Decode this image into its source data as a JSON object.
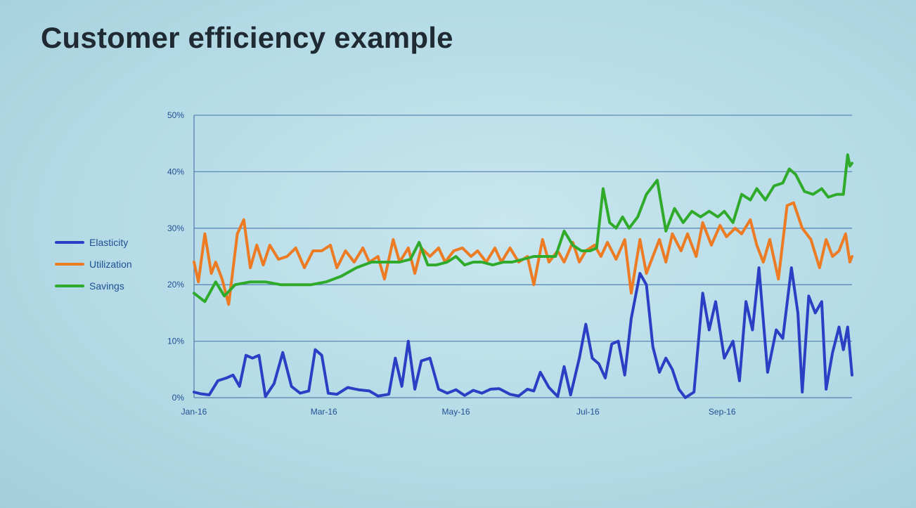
{
  "slide": {
    "title": "Customer efficiency example"
  },
  "colors": {
    "Elasticity": "#2b3fc4",
    "Utilization": "#ec7b23",
    "Savings": "#2faa2a",
    "gridline": "#3d6fa6",
    "axis": "#5b7fb0"
  },
  "chart_data": {
    "type": "line",
    "title": "",
    "xlabel": "",
    "ylabel": "",
    "ylim": [
      0,
      50
    ],
    "y_ticks": [
      "0%",
      "10%",
      "20%",
      "30%",
      "40%",
      "50%"
    ],
    "x_tick_labels": [
      "Jan-16",
      "Mar-16",
      "May-16",
      "Jul-16",
      "Sep-16"
    ],
    "x_range": [
      "2016-01-01",
      "2016-10-31"
    ],
    "grid": true,
    "legend_position": "left",
    "series": [
      {
        "name": "Elasticity",
        "points": [
          [
            "2016-01-01",
            1
          ],
          [
            "2016-01-04",
            0.7
          ],
          [
            "2016-01-08",
            0.5
          ],
          [
            "2016-01-12",
            3
          ],
          [
            "2016-01-16",
            3.5
          ],
          [
            "2016-01-19",
            4
          ],
          [
            "2016-01-22",
            2
          ],
          [
            "2016-01-25",
            7.5
          ],
          [
            "2016-01-28",
            7
          ],
          [
            "2016-01-31",
            7.5
          ],
          [
            "2016-02-03",
            0.2
          ],
          [
            "2016-02-07",
            2.5
          ],
          [
            "2016-02-11",
            8
          ],
          [
            "2016-02-15",
            2
          ],
          [
            "2016-02-19",
            0.8
          ],
          [
            "2016-02-23",
            1.2
          ],
          [
            "2016-02-26",
            8.5
          ],
          [
            "2016-02-29",
            7.5
          ],
          [
            "2016-03-03",
            0.8
          ],
          [
            "2016-03-07",
            0.6
          ],
          [
            "2016-03-12",
            1.8
          ],
          [
            "2016-03-17",
            1.4
          ],
          [
            "2016-03-22",
            1.2
          ],
          [
            "2016-03-26",
            0.3
          ],
          [
            "2016-03-31",
            0.6
          ],
          [
            "2016-04-03",
            7
          ],
          [
            "2016-04-06",
            2
          ],
          [
            "2016-04-09",
            10
          ],
          [
            "2016-04-12",
            1.5
          ],
          [
            "2016-04-15",
            6.5
          ],
          [
            "2016-04-19",
            7
          ],
          [
            "2016-04-23",
            1.5
          ],
          [
            "2016-04-27",
            0.8
          ],
          [
            "2016-05-01",
            1.4
          ],
          [
            "2016-05-05",
            0.4
          ],
          [
            "2016-05-09",
            1.3
          ],
          [
            "2016-05-13",
            0.8
          ],
          [
            "2016-05-17",
            1.5
          ],
          [
            "2016-05-21",
            1.6
          ],
          [
            "2016-05-26",
            0.6
          ],
          [
            "2016-05-30",
            0.3
          ],
          [
            "2016-06-03",
            1.5
          ],
          [
            "2016-06-06",
            1.2
          ],
          [
            "2016-06-09",
            4.5
          ],
          [
            "2016-06-13",
            1.8
          ],
          [
            "2016-06-17",
            0.2
          ],
          [
            "2016-06-20",
            5.5
          ],
          [
            "2016-06-23",
            0.5
          ],
          [
            "2016-06-27",
            7
          ],
          [
            "2016-06-30",
            13
          ],
          [
            "2016-07-03",
            7
          ],
          [
            "2016-07-06",
            6
          ],
          [
            "2016-07-09",
            3.5
          ],
          [
            "2016-07-12",
            9.5
          ],
          [
            "2016-07-15",
            10
          ],
          [
            "2016-07-18",
            4
          ],
          [
            "2016-07-21",
            14
          ],
          [
            "2016-07-25",
            22
          ],
          [
            "2016-07-28",
            20
          ],
          [
            "2016-07-31",
            9
          ],
          [
            "2016-08-03",
            4.5
          ],
          [
            "2016-08-06",
            7
          ],
          [
            "2016-08-09",
            5
          ],
          [
            "2016-08-12",
            1.5
          ],
          [
            "2016-08-15",
            0
          ],
          [
            "2016-08-19",
            1
          ],
          [
            "2016-08-23",
            18.5
          ],
          [
            "2016-08-26",
            12
          ],
          [
            "2016-08-29",
            17
          ],
          [
            "2016-09-02",
            7
          ],
          [
            "2016-09-06",
            10
          ],
          [
            "2016-09-09",
            3
          ],
          [
            "2016-09-12",
            17
          ],
          [
            "2016-09-15",
            12
          ],
          [
            "2016-09-18",
            23
          ],
          [
            "2016-09-22",
            4.5
          ],
          [
            "2016-09-26",
            12
          ],
          [
            "2016-09-29",
            10.5
          ],
          [
            "2016-10-03",
            23
          ],
          [
            "2016-10-06",
            15
          ],
          [
            "2016-10-08",
            1
          ],
          [
            "2016-10-11",
            18
          ],
          [
            "2016-10-14",
            15
          ],
          [
            "2016-10-17",
            17
          ],
          [
            "2016-10-19",
            1.5
          ],
          [
            "2016-10-22",
            8
          ],
          [
            "2016-10-25",
            12.5
          ],
          [
            "2016-10-27",
            8.5
          ],
          [
            "2016-10-29",
            12.5
          ],
          [
            "2016-10-31",
            4
          ]
        ]
      },
      {
        "name": "Utilization",
        "points": [
          [
            "2016-01-01",
            24
          ],
          [
            "2016-01-03",
            20.5
          ],
          [
            "2016-01-06",
            29
          ],
          [
            "2016-01-09",
            22
          ],
          [
            "2016-01-11",
            24
          ],
          [
            "2016-01-14",
            21
          ],
          [
            "2016-01-17",
            16.5
          ],
          [
            "2016-01-21",
            29
          ],
          [
            "2016-01-24",
            31.5
          ],
          [
            "2016-01-27",
            23
          ],
          [
            "2016-01-30",
            27
          ],
          [
            "2016-02-02",
            23.5
          ],
          [
            "2016-02-05",
            27
          ],
          [
            "2016-02-09",
            24.5
          ],
          [
            "2016-02-13",
            25
          ],
          [
            "2016-02-17",
            26.5
          ],
          [
            "2016-02-21",
            23
          ],
          [
            "2016-02-25",
            26
          ],
          [
            "2016-02-29",
            26
          ],
          [
            "2016-03-04",
            27
          ],
          [
            "2016-03-07",
            23
          ],
          [
            "2016-03-11",
            26
          ],
          [
            "2016-03-15",
            24
          ],
          [
            "2016-03-19",
            26.5
          ],
          [
            "2016-03-22",
            24
          ],
          [
            "2016-03-26",
            25
          ],
          [
            "2016-03-29",
            21
          ],
          [
            "2016-04-02",
            28
          ],
          [
            "2016-04-05",
            24
          ],
          [
            "2016-04-09",
            26.5
          ],
          [
            "2016-04-12",
            22
          ],
          [
            "2016-04-15",
            26.5
          ],
          [
            "2016-04-19",
            25
          ],
          [
            "2016-04-23",
            26.5
          ],
          [
            "2016-04-26",
            24
          ],
          [
            "2016-04-30",
            26
          ],
          [
            "2016-05-04",
            26.5
          ],
          [
            "2016-05-08",
            25
          ],
          [
            "2016-05-11",
            26
          ],
          [
            "2016-05-15",
            24
          ],
          [
            "2016-05-19",
            26.5
          ],
          [
            "2016-05-22",
            24
          ],
          [
            "2016-05-26",
            26.5
          ],
          [
            "2016-05-30",
            24
          ],
          [
            "2016-06-03",
            25
          ],
          [
            "2016-06-06",
            20
          ],
          [
            "2016-06-10",
            28
          ],
          [
            "2016-06-13",
            24
          ],
          [
            "2016-06-17",
            26
          ],
          [
            "2016-06-20",
            24
          ],
          [
            "2016-06-24",
            27.5
          ],
          [
            "2016-06-27",
            24
          ],
          [
            "2016-06-30",
            26
          ],
          [
            "2016-07-04",
            27
          ],
          [
            "2016-07-07",
            25
          ],
          [
            "2016-07-10",
            27.5
          ],
          [
            "2016-07-14",
            24.5
          ],
          [
            "2016-07-18",
            28
          ],
          [
            "2016-07-21",
            18.5
          ],
          [
            "2016-07-25",
            28
          ],
          [
            "2016-07-28",
            22
          ],
          [
            "2016-07-31",
            25
          ],
          [
            "2016-08-03",
            28
          ],
          [
            "2016-08-06",
            24
          ],
          [
            "2016-08-09",
            29
          ],
          [
            "2016-08-13",
            26
          ],
          [
            "2016-08-16",
            29
          ],
          [
            "2016-08-20",
            25
          ],
          [
            "2016-08-23",
            31
          ],
          [
            "2016-08-27",
            27
          ],
          [
            "2016-08-31",
            30.5
          ],
          [
            "2016-09-03",
            28.5
          ],
          [
            "2016-09-07",
            30
          ],
          [
            "2016-09-10",
            29
          ],
          [
            "2016-09-14",
            31.5
          ],
          [
            "2016-09-17",
            27
          ],
          [
            "2016-09-20",
            24
          ],
          [
            "2016-09-23",
            28
          ],
          [
            "2016-09-27",
            21
          ],
          [
            "2016-10-01",
            34
          ],
          [
            "2016-10-04",
            34.5
          ],
          [
            "2016-10-08",
            30
          ],
          [
            "2016-10-12",
            28
          ],
          [
            "2016-10-16",
            23
          ],
          [
            "2016-10-19",
            28
          ],
          [
            "2016-10-22",
            25
          ],
          [
            "2016-10-25",
            26
          ],
          [
            "2016-10-28",
            29
          ],
          [
            "2016-10-30",
            24
          ],
          [
            "2016-10-31",
            25
          ]
        ]
      },
      {
        "name": "Savings",
        "points": [
          [
            "2016-01-01",
            18.5
          ],
          [
            "2016-01-06",
            17
          ],
          [
            "2016-01-11",
            20.5
          ],
          [
            "2016-01-15",
            18
          ],
          [
            "2016-01-20",
            20
          ],
          [
            "2016-01-27",
            20.5
          ],
          [
            "2016-02-03",
            20.5
          ],
          [
            "2016-02-10",
            20
          ],
          [
            "2016-02-17",
            20
          ],
          [
            "2016-02-24",
            20
          ],
          [
            "2016-03-02",
            20.5
          ],
          [
            "2016-03-09",
            21.5
          ],
          [
            "2016-03-16",
            23
          ],
          [
            "2016-03-23",
            24
          ],
          [
            "2016-03-30",
            24
          ],
          [
            "2016-04-05",
            24
          ],
          [
            "2016-04-10",
            24.5
          ],
          [
            "2016-04-14",
            27.5
          ],
          [
            "2016-04-18",
            23.5
          ],
          [
            "2016-04-22",
            23.5
          ],
          [
            "2016-04-27",
            24
          ],
          [
            "2016-05-01",
            25
          ],
          [
            "2016-05-05",
            23.5
          ],
          [
            "2016-05-09",
            24
          ],
          [
            "2016-05-13",
            24
          ],
          [
            "2016-05-18",
            23.5
          ],
          [
            "2016-05-23",
            24
          ],
          [
            "2016-05-27",
            24
          ],
          [
            "2016-06-01",
            24.5
          ],
          [
            "2016-06-06",
            25
          ],
          [
            "2016-06-11",
            25
          ],
          [
            "2016-06-16",
            25
          ],
          [
            "2016-06-20",
            29.5
          ],
          [
            "2016-06-24",
            27
          ],
          [
            "2016-06-28",
            26
          ],
          [
            "2016-07-02",
            26
          ],
          [
            "2016-07-05",
            26.5
          ],
          [
            "2016-07-08",
            37
          ],
          [
            "2016-07-11",
            31
          ],
          [
            "2016-07-14",
            30
          ],
          [
            "2016-07-17",
            32
          ],
          [
            "2016-07-20",
            30
          ],
          [
            "2016-07-24",
            32
          ],
          [
            "2016-07-28",
            36
          ],
          [
            "2016-08-02",
            38.5
          ],
          [
            "2016-08-06",
            29.5
          ],
          [
            "2016-08-10",
            33.5
          ],
          [
            "2016-08-14",
            31
          ],
          [
            "2016-08-18",
            33
          ],
          [
            "2016-08-22",
            32
          ],
          [
            "2016-08-26",
            33
          ],
          [
            "2016-08-30",
            32
          ],
          [
            "2016-09-02",
            33
          ],
          [
            "2016-09-06",
            31
          ],
          [
            "2016-09-10",
            36
          ],
          [
            "2016-09-14",
            35
          ],
          [
            "2016-09-17",
            37
          ],
          [
            "2016-09-21",
            35
          ],
          [
            "2016-09-25",
            37.5
          ],
          [
            "2016-09-29",
            38
          ],
          [
            "2016-10-02",
            40.5
          ],
          [
            "2016-10-05",
            39.5
          ],
          [
            "2016-10-09",
            36.5
          ],
          [
            "2016-10-13",
            36
          ],
          [
            "2016-10-17",
            37
          ],
          [
            "2016-10-20",
            35.5
          ],
          [
            "2016-10-24",
            36
          ],
          [
            "2016-10-27",
            36
          ],
          [
            "2016-10-29",
            43
          ],
          [
            "2016-10-30",
            41
          ],
          [
            "2016-10-31",
            41.5
          ]
        ]
      }
    ]
  }
}
